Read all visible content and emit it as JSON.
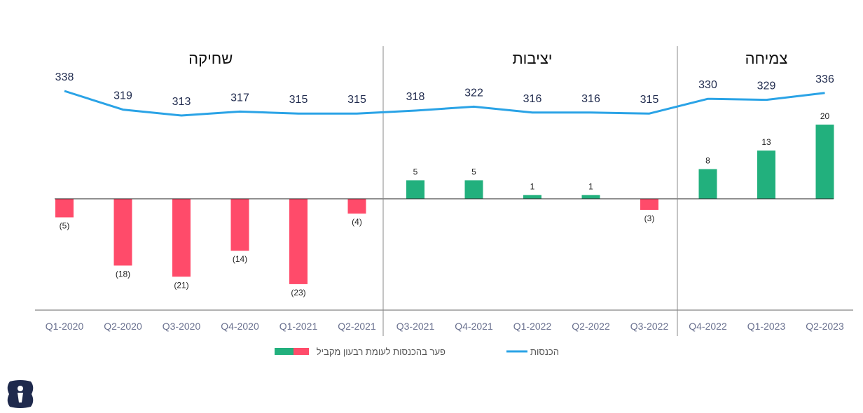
{
  "chart_data": {
    "type": "bar",
    "categories": [
      "Q1-2020",
      "Q2-2020",
      "Q3-2020",
      "Q4-2020",
      "Q1-2021",
      "Q2-2021",
      "Q3-2021",
      "Q4-2021",
      "Q1-2022",
      "Q2-2022",
      "Q3-2022",
      "Q4-2022",
      "Q1-2023",
      "Q2-2023"
    ],
    "series": [
      {
        "name": "הכנסות",
        "kind": "line",
        "color": "#2aa3e6",
        "values": [
          338,
          319,
          313,
          317,
          315,
          315,
          318,
          322,
          316,
          316,
          315,
          330,
          329,
          336
        ],
        "labels": [
          "338",
          "319",
          "313",
          "317",
          "315",
          "315",
          "318",
          "322",
          "316",
          "316",
          "315",
          "330",
          "329",
          "336"
        ]
      },
      {
        "name": "פער בהכנסות לעומת רבעון מקביל",
        "kind": "bar",
        "values": [
          -5,
          -18,
          -21,
          -14,
          -23,
          -4,
          5,
          5,
          1,
          1,
          -3,
          8,
          13,
          20
        ],
        "labels": [
          "(5)",
          "(18)",
          "(21)",
          "(14)",
          "(23)",
          "(4)",
          "5",
          "5",
          "1",
          "1",
          "(3)",
          "8",
          "13",
          "20"
        ]
      }
    ],
    "sections": [
      {
        "title": "שחיקה",
        "from": "Q1-2020",
        "to": "Q2-2021"
      },
      {
        "title": "יציבות",
        "from": "Q3-2021",
        "to": "Q3-2022"
      },
      {
        "title": "צמיחה",
        "from": "Q4-2022",
        "to": "Q2-2023"
      }
    ],
    "colors": {
      "positive": "#22b07d",
      "negative": "#ff4b6a",
      "line": "#2aa3e6"
    },
    "legend": {
      "bars_label": "פער בהכנסות לעומת רבעון מקביל",
      "line_label": "הכנסות",
      "placement": "bottom-center"
    }
  },
  "logo": {
    "icon": "brand-logo-icon",
    "color": "#1f2a4d"
  }
}
